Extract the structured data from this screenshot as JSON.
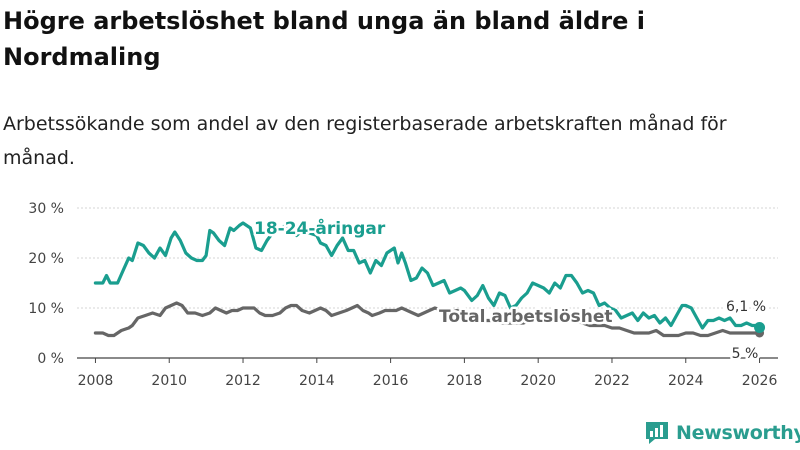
{
  "chart_data": {
    "type": "line",
    "title": "Högre arbetslöshet bland unga än bland äldre i Nordmaling",
    "subtitle": "Arbetssökande som andel av den registerbaserade arbetskraften månad för månad.",
    "x_ticks": [
      "2008",
      "2010",
      "2012",
      "2014",
      "2016",
      "2018",
      "2020",
      "2022",
      "2024",
      "2026"
    ],
    "y_ticks": [
      "0 %",
      "10 %",
      "20 %",
      "30 %"
    ],
    "xlim": [
      2007.5,
      2026.5
    ],
    "ylim": [
      0,
      30
    ],
    "series": [
      {
        "name": "18-24-åringar",
        "color": "#1a9e8f",
        "end_label": "6,1 %",
        "points": [
          [
            2008.0,
            15
          ],
          [
            2008.2,
            15
          ],
          [
            2008.3,
            16.5
          ],
          [
            2008.4,
            15
          ],
          [
            2008.6,
            15
          ],
          [
            2008.75,
            17.5
          ],
          [
            2008.9,
            20
          ],
          [
            2009.0,
            19.5
          ],
          [
            2009.15,
            23
          ],
          [
            2009.3,
            22.5
          ],
          [
            2009.45,
            21
          ],
          [
            2009.6,
            20
          ],
          [
            2009.75,
            22
          ],
          [
            2009.9,
            20.5
          ],
          [
            2010.05,
            24
          ],
          [
            2010.15,
            25.2
          ],
          [
            2010.3,
            23.5
          ],
          [
            2010.45,
            21
          ],
          [
            2010.6,
            20
          ],
          [
            2010.75,
            19.5
          ],
          [
            2010.9,
            19.5
          ],
          [
            2011.0,
            20.5
          ],
          [
            2011.1,
            25.5
          ],
          [
            2011.2,
            25
          ],
          [
            2011.35,
            23.5
          ],
          [
            2011.5,
            22.5
          ],
          [
            2011.65,
            26
          ],
          [
            2011.75,
            25.5
          ],
          [
            2011.9,
            26.5
          ],
          [
            2012.0,
            27
          ],
          [
            2012.2,
            26
          ],
          [
            2012.35,
            22
          ],
          [
            2012.5,
            21.5
          ],
          [
            2012.65,
            23.5
          ],
          [
            2012.8,
            25
          ],
          [
            2012.95,
            25.5
          ],
          [
            2013.15,
            26.5
          ],
          [
            2013.3,
            26
          ],
          [
            2013.45,
            24.5
          ],
          [
            2013.6,
            25.5
          ],
          [
            2013.8,
            25
          ],
          [
            2014.0,
            24.5
          ],
          [
            2014.1,
            23
          ],
          [
            2014.25,
            22.5
          ],
          [
            2014.4,
            20.5
          ],
          [
            2014.55,
            22.5
          ],
          [
            2014.7,
            24
          ],
          [
            2014.85,
            21.5
          ],
          [
            2015.0,
            21.5
          ],
          [
            2015.15,
            19
          ],
          [
            2015.3,
            19.5
          ],
          [
            2015.45,
            17
          ],
          [
            2015.6,
            19.5
          ],
          [
            2015.75,
            18.5
          ],
          [
            2015.9,
            21
          ],
          [
            2016.0,
            21.5
          ],
          [
            2016.1,
            22
          ],
          [
            2016.2,
            19
          ],
          [
            2016.3,
            21
          ],
          [
            2016.4,
            19
          ],
          [
            2016.55,
            15.5
          ],
          [
            2016.7,
            16
          ],
          [
            2016.85,
            18
          ],
          [
            2017.0,
            17
          ],
          [
            2017.15,
            14.5
          ],
          [
            2017.3,
            15
          ],
          [
            2017.45,
            15.5
          ],
          [
            2017.6,
            13
          ],
          [
            2017.75,
            13.5
          ],
          [
            2017.9,
            14
          ],
          [
            2018.0,
            13.5
          ],
          [
            2018.2,
            11.5
          ],
          [
            2018.35,
            12.5
          ],
          [
            2018.5,
            14.5
          ],
          [
            2018.65,
            12
          ],
          [
            2018.8,
            10.5
          ],
          [
            2018.95,
            13
          ],
          [
            2019.1,
            12.5
          ],
          [
            2019.25,
            10
          ],
          [
            2019.4,
            10.5
          ],
          [
            2019.55,
            12
          ],
          [
            2019.7,
            13
          ],
          [
            2019.85,
            15
          ],
          [
            2020.0,
            14.5
          ],
          [
            2020.15,
            14
          ],
          [
            2020.3,
            13
          ],
          [
            2020.45,
            15
          ],
          [
            2020.6,
            14
          ],
          [
            2020.75,
            16.5
          ],
          [
            2020.9,
            16.5
          ],
          [
            2021.05,
            15
          ],
          [
            2021.2,
            13
          ],
          [
            2021.35,
            13.5
          ],
          [
            2021.5,
            13
          ],
          [
            2021.65,
            10.5
          ],
          [
            2021.8,
            11
          ],
          [
            2021.95,
            10
          ],
          [
            2022.1,
            9.5
          ],
          [
            2022.25,
            8
          ],
          [
            2022.4,
            8.5
          ],
          [
            2022.55,
            9
          ],
          [
            2022.7,
            7.5
          ],
          [
            2022.85,
            9
          ],
          [
            2023.0,
            8
          ],
          [
            2023.15,
            8.5
          ],
          [
            2023.3,
            7
          ],
          [
            2023.45,
            8
          ],
          [
            2023.6,
            6.5
          ],
          [
            2023.75,
            8.5
          ],
          [
            2023.9,
            10.5
          ],
          [
            2024.0,
            10.5
          ],
          [
            2024.15,
            10
          ],
          [
            2024.3,
            8
          ],
          [
            2024.45,
            6
          ],
          [
            2024.6,
            7.5
          ],
          [
            2024.75,
            7.5
          ],
          [
            2024.9,
            8
          ],
          [
            2025.05,
            7.5
          ],
          [
            2025.2,
            8
          ],
          [
            2025.35,
            6.5
          ],
          [
            2025.5,
            6.5
          ],
          [
            2025.65,
            7
          ],
          [
            2025.8,
            6.5
          ],
          [
            2025.95,
            6.5
          ],
          [
            2026.0,
            6.1
          ]
        ]
      },
      {
        "name": "Total arbetslöshet",
        "color": "#666666",
        "end_label": "5 %",
        "points": [
          [
            2008.0,
            5
          ],
          [
            2008.2,
            5
          ],
          [
            2008.35,
            4.5
          ],
          [
            2008.5,
            4.5
          ],
          [
            2008.7,
            5.5
          ],
          [
            2008.9,
            6
          ],
          [
            2009.0,
            6.5
          ],
          [
            2009.15,
            8
          ],
          [
            2009.35,
            8.5
          ],
          [
            2009.55,
            9
          ],
          [
            2009.75,
            8.5
          ],
          [
            2009.9,
            10
          ],
          [
            2010.05,
            10.5
          ],
          [
            2010.2,
            11
          ],
          [
            2010.35,
            10.5
          ],
          [
            2010.5,
            9
          ],
          [
            2010.7,
            9
          ],
          [
            2010.9,
            8.5
          ],
          [
            2011.1,
            9
          ],
          [
            2011.25,
            10
          ],
          [
            2011.4,
            9.5
          ],
          [
            2011.55,
            9
          ],
          [
            2011.7,
            9.5
          ],
          [
            2011.85,
            9.5
          ],
          [
            2012.0,
            10
          ],
          [
            2012.15,
            10
          ],
          [
            2012.3,
            10
          ],
          [
            2012.45,
            9
          ],
          [
            2012.6,
            8.5
          ],
          [
            2012.8,
            8.5
          ],
          [
            2013.0,
            9
          ],
          [
            2013.15,
            10
          ],
          [
            2013.3,
            10.5
          ],
          [
            2013.45,
            10.5
          ],
          [
            2013.6,
            9.5
          ],
          [
            2013.8,
            9
          ],
          [
            2013.95,
            9.5
          ],
          [
            2014.1,
            10
          ],
          [
            2014.25,
            9.5
          ],
          [
            2014.4,
            8.5
          ],
          [
            2014.6,
            9
          ],
          [
            2014.8,
            9.5
          ],
          [
            2014.95,
            10
          ],
          [
            2015.1,
            10.5
          ],
          [
            2015.25,
            9.5
          ],
          [
            2015.4,
            9
          ],
          [
            2015.5,
            8.5
          ],
          [
            2015.7,
            9
          ],
          [
            2015.85,
            9.5
          ],
          [
            2016.0,
            9.5
          ],
          [
            2016.15,
            9.5
          ],
          [
            2016.3,
            10
          ],
          [
            2016.45,
            9.5
          ],
          [
            2016.6,
            9
          ],
          [
            2016.75,
            8.5
          ],
          [
            2016.9,
            9
          ],
          [
            2017.05,
            9.5
          ],
          [
            2017.2,
            10
          ],
          [
            2017.4,
            9.5
          ],
          [
            2017.6,
            9
          ],
          [
            2017.8,
            9.5
          ],
          [
            2018.0,
            9
          ],
          [
            2018.2,
            8.5
          ],
          [
            2018.4,
            8
          ],
          [
            2018.6,
            7.5
          ],
          [
            2018.8,
            7.5
          ],
          [
            2019.0,
            7
          ],
          [
            2019.2,
            7
          ],
          [
            2019.4,
            7
          ],
          [
            2019.6,
            7
          ],
          [
            2019.8,
            7.5
          ],
          [
            2020.0,
            8
          ],
          [
            2020.2,
            8
          ],
          [
            2020.4,
            7.5
          ],
          [
            2020.6,
            7.5
          ],
          [
            2020.8,
            7.5
          ],
          [
            2021.0,
            7.5
          ],
          [
            2021.2,
            7
          ],
          [
            2021.4,
            6.5
          ],
          [
            2021.6,
            6.5
          ],
          [
            2021.8,
            6.5
          ],
          [
            2022.0,
            6
          ],
          [
            2022.2,
            6
          ],
          [
            2022.4,
            5.5
          ],
          [
            2022.6,
            5
          ],
          [
            2022.8,
            5
          ],
          [
            2023.0,
            5
          ],
          [
            2023.2,
            5.5
          ],
          [
            2023.4,
            4.5
          ],
          [
            2023.6,
            4.5
          ],
          [
            2023.8,
            4.5
          ],
          [
            2024.0,
            5
          ],
          [
            2024.2,
            5
          ],
          [
            2024.4,
            4.5
          ],
          [
            2024.6,
            4.5
          ],
          [
            2024.8,
            5
          ],
          [
            2025.0,
            5.5
          ],
          [
            2025.2,
            5
          ],
          [
            2025.4,
            5
          ],
          [
            2025.6,
            5
          ],
          [
            2025.8,
            5
          ],
          [
            2026.0,
            5
          ]
        ]
      }
    ]
  },
  "brand": {
    "name": "Newsworthy",
    "icon": "bar-chart-speech-icon"
  },
  "colors": {
    "accent": "#1a9e8f",
    "total": "#666666",
    "grid": "#d6d6d6",
    "axis_text": "#444444"
  }
}
